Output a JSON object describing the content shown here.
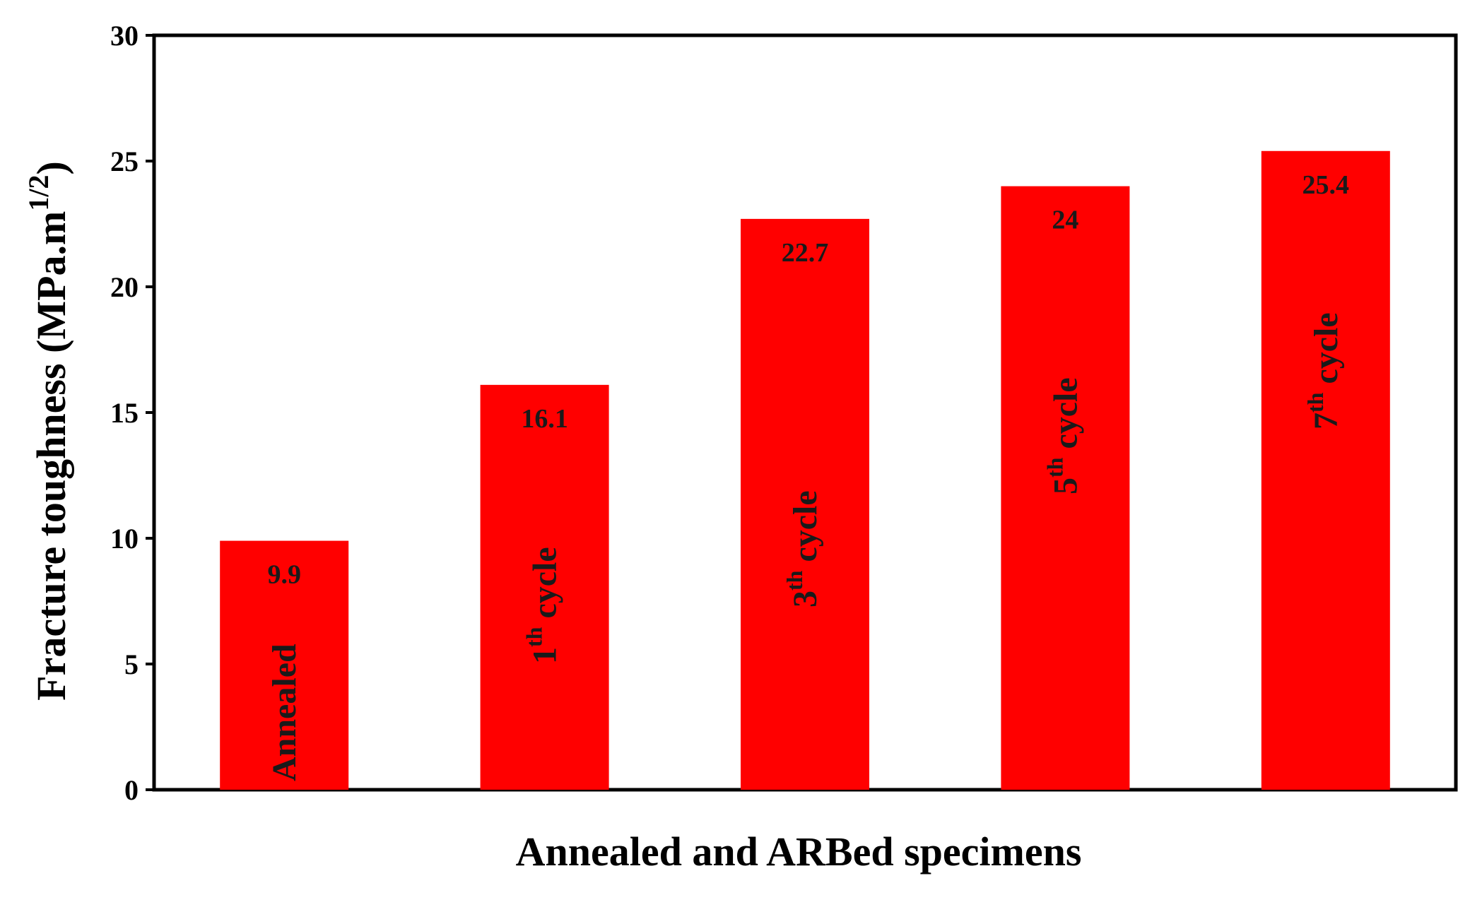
{
  "chart_data": {
    "type": "bar",
    "categories": [
      {
        "label": "Annealed",
        "sup": ""
      },
      {
        "label": " cycle",
        "prefix": "1",
        "sup": "th"
      },
      {
        "label": " cycle",
        "prefix": "3",
        "sup": "th"
      },
      {
        "label": " cycle",
        "prefix": "5",
        "sup": "th"
      },
      {
        "label": " cycle",
        "prefix": "7",
        "sup": "th"
      }
    ],
    "values": [
      9.9,
      16.1,
      22.7,
      24,
      25.4
    ],
    "value_labels": [
      "9.9",
      "16.1",
      "22.7",
      "24",
      "25.4"
    ],
    "xlabel": "Annealed and ARBed specimens",
    "ylabel": "Fracture toughness (MPa.m",
    "ylabel_sup": "1/2",
    "ylabel_end": ")",
    "ylim": [
      0,
      30
    ],
    "yticks": [
      0,
      5,
      10,
      15,
      20,
      25,
      30
    ],
    "grid": false,
    "bar_color": "#ff0000"
  }
}
